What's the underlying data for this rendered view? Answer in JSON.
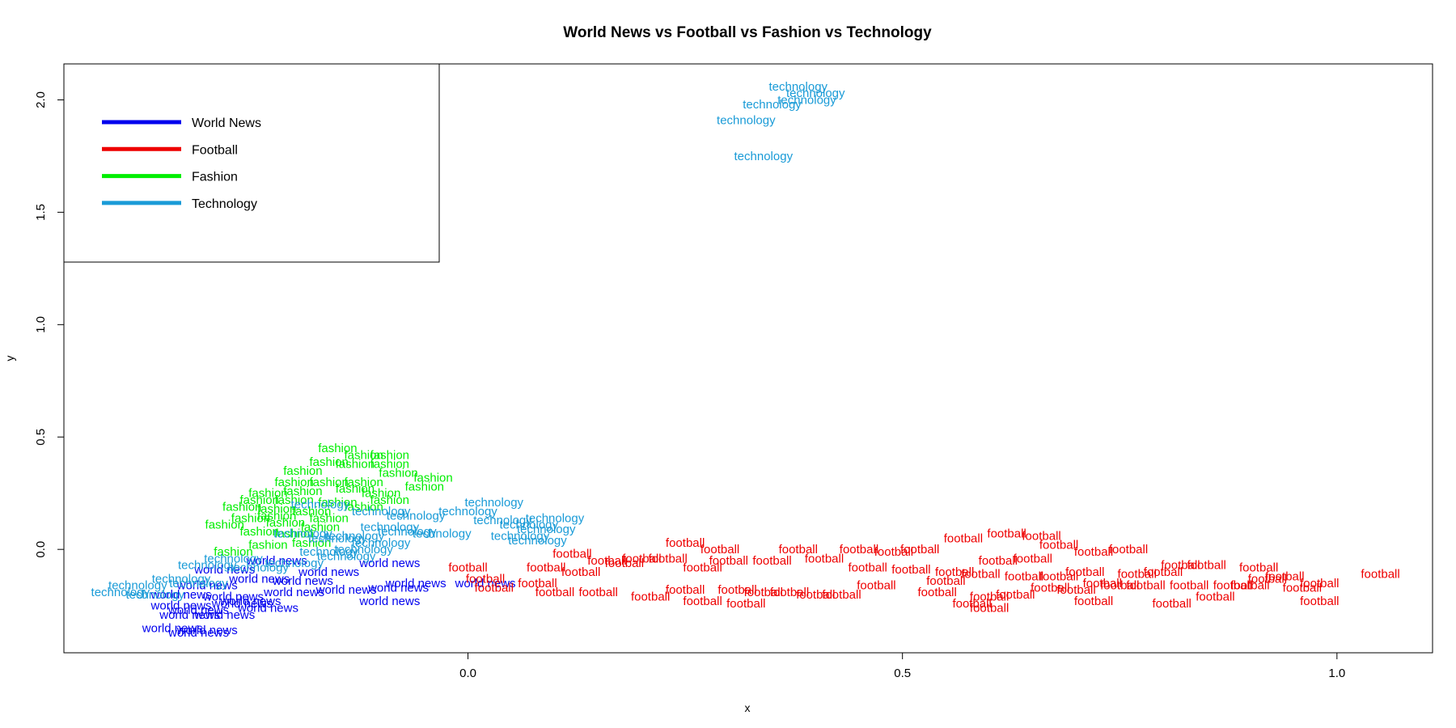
{
  "chart_data": {
    "type": "scatter",
    "title": "World News vs Football vs Fashion vs Technology",
    "xlabel": "x",
    "ylabel": "y",
    "xlim": [
      -0.465,
      1.11
    ],
    "ylim": [
      -0.46,
      2.16
    ],
    "x_ticks": [
      0.0,
      0.5,
      1.0
    ],
    "x_tick_labels": [
      "0.0",
      "0.5",
      "1.0"
    ],
    "y_ticks": [
      0.0,
      0.5,
      1.0,
      1.5,
      2.0
    ],
    "y_tick_labels": [
      "0.0",
      "0.5",
      "1.0",
      "1.5",
      "2.0"
    ],
    "grid": false,
    "legend_position": "top-left",
    "legend": [
      {
        "label": "World News",
        "color": "#0000ee"
      },
      {
        "label": "Football",
        "color": "#ee0000"
      },
      {
        "label": "Fashion",
        "color": "#00ee00"
      },
      {
        "label": "Technology",
        "color": "#1a9bd7"
      }
    ],
    "series": [
      {
        "label": "world news",
        "color": "#0000ee",
        "points": [
          [
            -0.3,
            -0.16
          ],
          [
            -0.27,
            -0.21
          ],
          [
            -0.25,
            -0.23
          ],
          [
            -0.33,
            -0.25
          ],
          [
            -0.31,
            -0.27
          ],
          [
            -0.28,
            -0.29
          ],
          [
            -0.34,
            -0.35
          ],
          [
            -0.31,
            -0.37
          ],
          [
            -0.24,
            -0.13
          ],
          [
            -0.19,
            -0.14
          ],
          [
            -0.2,
            -0.19
          ],
          [
            -0.23,
            -0.26
          ],
          [
            -0.14,
            -0.18
          ],
          [
            -0.16,
            -0.1
          ],
          [
            -0.22,
            -0.05
          ],
          [
            -0.09,
            -0.06
          ],
          [
            -0.08,
            -0.17
          ],
          [
            -0.09,
            -0.23
          ],
          [
            -0.06,
            -0.15
          ],
          [
            0.02,
            -0.15
          ],
          [
            -0.28,
            -0.09
          ],
          [
            -0.33,
            -0.2
          ],
          [
            -0.26,
            -0.24
          ],
          [
            -0.32,
            -0.29
          ],
          [
            -0.3,
            -0.36
          ]
        ]
      },
      {
        "label": "football",
        "color": "#ee0000",
        "points": [
          [
            0.0,
            -0.08
          ],
          [
            0.02,
            -0.13
          ],
          [
            0.03,
            -0.17
          ],
          [
            0.08,
            -0.15
          ],
          [
            0.09,
            -0.08
          ],
          [
            0.1,
            -0.19
          ],
          [
            0.12,
            -0.02
          ],
          [
            0.13,
            -0.1
          ],
          [
            0.15,
            -0.19
          ],
          [
            0.16,
            -0.05
          ],
          [
            0.18,
            -0.06
          ],
          [
            0.2,
            -0.04
          ],
          [
            0.21,
            -0.21
          ],
          [
            0.23,
            -0.04
          ],
          [
            0.25,
            -0.18
          ],
          [
            0.25,
            0.03
          ],
          [
            0.27,
            -0.08
          ],
          [
            0.27,
            -0.23
          ],
          [
            0.29,
            0.0
          ],
          [
            0.3,
            -0.05
          ],
          [
            0.31,
            -0.18
          ],
          [
            0.32,
            -0.24
          ],
          [
            0.34,
            -0.19
          ],
          [
            0.35,
            -0.05
          ],
          [
            0.37,
            -0.19
          ],
          [
            0.38,
            0.0
          ],
          [
            0.4,
            -0.2
          ],
          [
            0.41,
            -0.04
          ],
          [
            0.43,
            -0.2
          ],
          [
            0.45,
            0.0
          ],
          [
            0.46,
            -0.08
          ],
          [
            0.47,
            -0.16
          ],
          [
            0.49,
            -0.01
          ],
          [
            0.51,
            -0.09
          ],
          [
            0.52,
            0.0
          ],
          [
            0.54,
            -0.19
          ],
          [
            0.55,
            -0.14
          ],
          [
            0.57,
            0.05
          ],
          [
            0.58,
            -0.24
          ],
          [
            0.59,
            -0.11
          ],
          [
            0.6,
            -0.21
          ],
          [
            0.6,
            -0.26
          ],
          [
            0.61,
            -0.05
          ],
          [
            0.62,
            0.07
          ],
          [
            0.64,
            -0.12
          ],
          [
            0.65,
            -0.04
          ],
          [
            0.66,
            0.06
          ],
          [
            0.67,
            -0.17
          ],
          [
            0.68,
            0.02
          ],
          [
            0.68,
            -0.12
          ],
          [
            0.7,
            -0.18
          ],
          [
            0.71,
            -0.1
          ],
          [
            0.72,
            -0.23
          ],
          [
            0.73,
            -0.15
          ],
          [
            0.75,
            -0.16
          ],
          [
            0.76,
            0.0
          ],
          [
            0.77,
            -0.11
          ],
          [
            0.78,
            -0.16
          ],
          [
            0.8,
            -0.1
          ],
          [
            0.81,
            -0.24
          ],
          [
            0.83,
            -0.16
          ],
          [
            0.85,
            -0.07
          ],
          [
            0.86,
            -0.21
          ],
          [
            0.88,
            -0.16
          ],
          [
            0.9,
            -0.16
          ],
          [
            0.91,
            -0.08
          ],
          [
            0.92,
            -0.13
          ],
          [
            0.94,
            -0.12
          ],
          [
            0.96,
            -0.17
          ],
          [
            0.98,
            -0.15
          ],
          [
            1.05,
            -0.11
          ],
          [
            0.98,
            -0.23
          ],
          [
            0.72,
            -0.01
          ],
          [
            0.82,
            -0.07
          ],
          [
            0.63,
            -0.2
          ],
          [
            0.56,
            -0.1
          ]
        ]
      },
      {
        "label": "fashion",
        "color": "#00ee00",
        "points": [
          [
            -0.15,
            0.45
          ],
          [
            -0.12,
            0.42
          ],
          [
            -0.09,
            0.42
          ],
          [
            -0.16,
            0.39
          ],
          [
            -0.13,
            0.38
          ],
          [
            -0.09,
            0.38
          ],
          [
            -0.19,
            0.35
          ],
          [
            -0.08,
            0.34
          ],
          [
            -0.04,
            0.32
          ],
          [
            -0.2,
            0.3
          ],
          [
            -0.16,
            0.3
          ],
          [
            -0.12,
            0.3
          ],
          [
            -0.05,
            0.28
          ],
          [
            -0.23,
            0.25
          ],
          [
            -0.19,
            0.26
          ],
          [
            -0.1,
            0.25
          ],
          [
            -0.13,
            0.27
          ],
          [
            -0.24,
            0.22
          ],
          [
            -0.2,
            0.22
          ],
          [
            -0.15,
            0.21
          ],
          [
            -0.09,
            0.22
          ],
          [
            -0.26,
            0.19
          ],
          [
            -0.22,
            0.18
          ],
          [
            -0.18,
            0.17
          ],
          [
            -0.12,
            0.19
          ],
          [
            -0.28,
            0.11
          ],
          [
            -0.25,
            0.14
          ],
          [
            -0.21,
            0.12
          ],
          [
            -0.17,
            0.1
          ],
          [
            -0.24,
            0.08
          ],
          [
            -0.2,
            0.07
          ],
          [
            -0.27,
            -0.01
          ],
          [
            -0.23,
            0.02
          ],
          [
            -0.18,
            0.03
          ],
          [
            -0.22,
            0.15
          ],
          [
            -0.16,
            0.14
          ]
        ]
      },
      {
        "label": "technology",
        "color": "#1a9bd7",
        "points": [
          [
            0.38,
            2.06
          ],
          [
            0.4,
            2.03
          ],
          [
            0.39,
            2.0
          ],
          [
            0.35,
            1.98
          ],
          [
            0.32,
            1.91
          ],
          [
            0.34,
            1.75
          ],
          [
            0.03,
            0.21
          ],
          [
            0.0,
            0.17
          ],
          [
            0.04,
            0.13
          ],
          [
            0.1,
            0.14
          ],
          [
            0.07,
            0.11
          ],
          [
            0.09,
            0.09
          ],
          [
            0.06,
            0.06
          ],
          [
            0.08,
            0.04
          ],
          [
            -0.06,
            0.15
          ],
          [
            -0.03,
            0.07
          ],
          [
            -0.09,
            0.1
          ],
          [
            -0.1,
            0.03
          ],
          [
            -0.13,
            0.06
          ],
          [
            -0.15,
            0.05
          ],
          [
            -0.17,
            0.2
          ],
          [
            -0.1,
            0.17
          ],
          [
            -0.12,
            0.0
          ],
          [
            -0.14,
            -0.03
          ],
          [
            -0.2,
            -0.06
          ],
          [
            -0.24,
            -0.08
          ],
          [
            -0.3,
            -0.07
          ],
          [
            -0.33,
            -0.13
          ],
          [
            -0.38,
            -0.16
          ],
          [
            -0.4,
            -0.19
          ],
          [
            -0.36,
            -0.2
          ],
          [
            -0.31,
            -0.15
          ],
          [
            -0.27,
            -0.04
          ],
          [
            -0.19,
            0.07
          ],
          [
            -0.07,
            0.08
          ],
          [
            -0.16,
            -0.01
          ]
        ]
      }
    ]
  }
}
